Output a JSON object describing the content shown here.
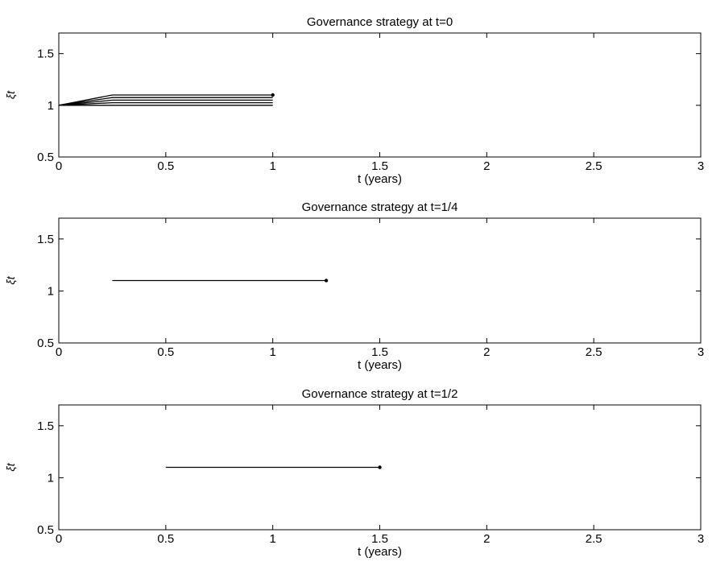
{
  "chart_data": [
    {
      "type": "line",
      "title": "Governance strategy at t=0",
      "xlabel": "t (years)",
      "ylabel": "ξt",
      "xlim": [
        0,
        3
      ],
      "ylim": [
        0.5,
        1.7
      ],
      "xticks": [
        0,
        0.5,
        1,
        1.5,
        2,
        2.5,
        3
      ],
      "xtick_labels": [
        "0",
        "0.5",
        "1",
        "1.5",
        "2",
        "2.5",
        "3"
      ],
      "yticks": [
        0.5,
        1,
        1.5
      ],
      "ytick_labels": [
        "0.5",
        "1",
        "1.5"
      ],
      "grid": false,
      "series": [
        {
          "x": [
            0,
            0.25,
            1
          ],
          "y": [
            1,
            1.1,
            1.1
          ]
        },
        {
          "x": [
            0,
            0.25,
            1
          ],
          "y": [
            1,
            1.075,
            1.075
          ]
        },
        {
          "x": [
            0,
            0.25,
            1
          ],
          "y": [
            1,
            1.05,
            1.05
          ]
        },
        {
          "x": [
            0,
            0.25,
            1
          ],
          "y": [
            1,
            1.025,
            1.025
          ]
        },
        {
          "x": [
            0,
            0.25,
            1
          ],
          "y": [
            1,
            1.0,
            1.0
          ]
        }
      ],
      "end_points": [
        {
          "x": 1,
          "y": 1.1
        }
      ]
    },
    {
      "type": "line",
      "title": "Governance strategy at t=1/4",
      "xlabel": "t (years)",
      "ylabel": "ξt",
      "xlim": [
        0,
        3
      ],
      "ylim": [
        0.5,
        1.7
      ],
      "xticks": [
        0,
        0.5,
        1,
        1.5,
        2,
        2.5,
        3
      ],
      "xtick_labels": [
        "0",
        "0.5",
        "1",
        "1.5",
        "2",
        "2.5",
        "3"
      ],
      "yticks": [
        0.5,
        1,
        1.5
      ],
      "ytick_labels": [
        "0.5",
        "1",
        "1.5"
      ],
      "grid": false,
      "series": [
        {
          "x": [
            0.25,
            1.25
          ],
          "y": [
            1.1,
            1.1
          ]
        }
      ],
      "end_points": [
        {
          "x": 1.25,
          "y": 1.1
        }
      ]
    },
    {
      "type": "line",
      "title": "Governance strategy at t=1/2",
      "xlabel": "t (years)",
      "ylabel": "ξt",
      "xlim": [
        0,
        3
      ],
      "ylim": [
        0.5,
        1.7
      ],
      "xticks": [
        0,
        0.5,
        1,
        1.5,
        2,
        2.5,
        3
      ],
      "xtick_labels": [
        "0",
        "0.5",
        "1",
        "1.5",
        "2",
        "2.5",
        "3"
      ],
      "yticks": [
        0.5,
        1,
        1.5
      ],
      "ytick_labels": [
        "0.5",
        "1",
        "1.5"
      ],
      "grid": false,
      "series": [
        {
          "x": [
            0.5,
            1.5
          ],
          "y": [
            1.1,
            1.1
          ]
        }
      ],
      "end_points": [
        {
          "x": 1.5,
          "y": 1.1
        }
      ]
    }
  ]
}
